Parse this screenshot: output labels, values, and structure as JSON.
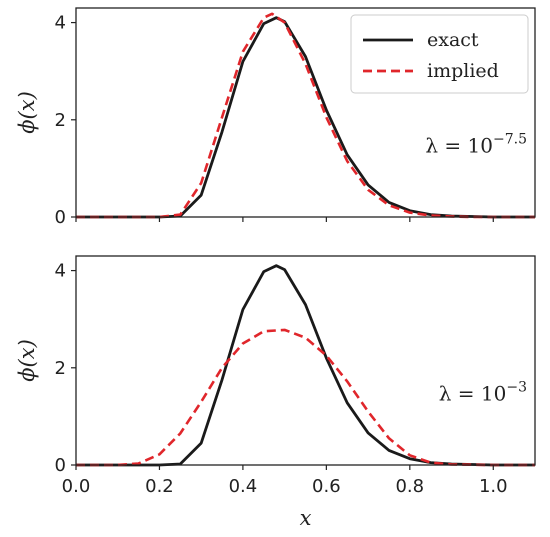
{
  "chart_data": [
    {
      "type": "line",
      "panel": "top",
      "xlabel": "",
      "ylabel": "ϕ(x)",
      "xlim": [
        0.0,
        1.1
      ],
      "ylim": [
        0,
        4.3
      ],
      "xticks": [
        0.0,
        0.2,
        0.4,
        0.6,
        0.8,
        1.0
      ],
      "yticks": [
        0,
        2,
        4
      ],
      "ytick_labels": [
        "0",
        "2",
        "4"
      ],
      "annotation": {
        "base": "λ = 10",
        "exponent": "−7.5"
      },
      "legend": {
        "placement": "top-right",
        "entries": [
          "exact",
          "implied"
        ]
      },
      "grid": false,
      "series": [
        {
          "name": "exact",
          "style": "solid",
          "color": "#1a1a1a",
          "x": [
            0.0,
            0.2,
            0.25,
            0.3,
            0.35,
            0.4,
            0.45,
            0.48,
            0.5,
            0.55,
            0.6,
            0.65,
            0.7,
            0.75,
            0.8,
            0.85,
            0.9,
            0.95,
            1.0,
            1.1
          ],
          "y": [
            0.0,
            0.0,
            0.02,
            0.45,
            1.75,
            3.2,
            3.98,
            4.1,
            4.02,
            3.3,
            2.2,
            1.28,
            0.66,
            0.3,
            0.13,
            0.05,
            0.02,
            0.01,
            0.0,
            0.0
          ]
        },
        {
          "name": "implied",
          "style": "dashed",
          "color": "#e0262b",
          "x": [
            0.0,
            0.2,
            0.25,
            0.3,
            0.35,
            0.4,
            0.45,
            0.47,
            0.5,
            0.55,
            0.6,
            0.65,
            0.7,
            0.75,
            0.8,
            0.85,
            0.9,
            0.95,
            1.0,
            1.1
          ],
          "y": [
            0.0,
            0.0,
            0.05,
            0.7,
            2.05,
            3.4,
            4.1,
            4.18,
            4.0,
            3.15,
            2.05,
            1.15,
            0.56,
            0.24,
            0.09,
            0.03,
            0.01,
            0.0,
            0.0,
            0.0
          ]
        }
      ]
    },
    {
      "type": "line",
      "panel": "bottom",
      "xlabel": "x",
      "ylabel": "ϕ(x)",
      "xlim": [
        0.0,
        1.1
      ],
      "ylim": [
        0,
        4.3
      ],
      "xticks": [
        0.0,
        0.2,
        0.4,
        0.6,
        0.8,
        1.0
      ],
      "xtick_labels": [
        "0.0",
        "0.2",
        "0.4",
        "0.6",
        "0.8",
        "1.0"
      ],
      "yticks": [
        0,
        2,
        4
      ],
      "ytick_labels": [
        "0",
        "2",
        "4"
      ],
      "annotation": {
        "base": "λ = 10",
        "exponent": "−3"
      },
      "grid": false,
      "series": [
        {
          "name": "exact",
          "style": "solid",
          "color": "#1a1a1a",
          "x": [
            0.0,
            0.2,
            0.25,
            0.3,
            0.35,
            0.4,
            0.45,
            0.48,
            0.5,
            0.55,
            0.6,
            0.65,
            0.7,
            0.75,
            0.8,
            0.85,
            0.9,
            0.95,
            1.0,
            1.1
          ],
          "y": [
            0.0,
            0.0,
            0.02,
            0.45,
            1.75,
            3.2,
            3.98,
            4.1,
            4.02,
            3.3,
            2.2,
            1.28,
            0.66,
            0.3,
            0.13,
            0.05,
            0.02,
            0.01,
            0.0,
            0.0
          ]
        },
        {
          "name": "implied",
          "style": "dashed",
          "color": "#e0262b",
          "x": [
            0.0,
            0.1,
            0.15,
            0.2,
            0.25,
            0.3,
            0.35,
            0.4,
            0.45,
            0.5,
            0.55,
            0.6,
            0.65,
            0.7,
            0.75,
            0.8,
            0.85,
            0.9,
            1.0,
            1.1
          ],
          "y": [
            0.0,
            0.0,
            0.03,
            0.22,
            0.65,
            1.3,
            2.0,
            2.5,
            2.75,
            2.78,
            2.62,
            2.25,
            1.72,
            1.1,
            0.55,
            0.2,
            0.05,
            0.01,
            0.0,
            0.0
          ]
        }
      ]
    }
  ]
}
